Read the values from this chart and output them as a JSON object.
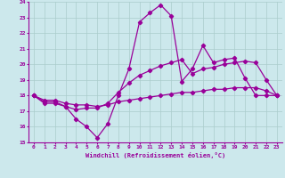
{
  "xlabel": "Windchill (Refroidissement éolien,°C)",
  "bg_color": "#cce8ec",
  "line_color": "#990099",
  "grid_color": "#aacccc",
  "xlim": [
    -0.5,
    23.5
  ],
  "ylim": [
    15,
    24
  ],
  "yticks": [
    15,
    16,
    17,
    18,
    19,
    20,
    21,
    22,
    23,
    24
  ],
  "xticks": [
    0,
    1,
    2,
    3,
    4,
    5,
    6,
    7,
    8,
    9,
    10,
    11,
    12,
    13,
    14,
    15,
    16,
    17,
    18,
    19,
    20,
    21,
    22,
    23
  ],
  "series1_y": [
    18.0,
    17.5,
    17.5,
    17.3,
    16.5,
    16.0,
    15.3,
    16.2,
    18.0,
    19.7,
    22.7,
    23.3,
    23.8,
    23.1,
    18.9,
    19.7,
    21.2,
    20.1,
    20.3,
    20.4,
    19.1,
    18.0,
    18.0,
    18.0
  ],
  "series2_y": [
    18.0,
    17.6,
    17.6,
    17.3,
    17.1,
    17.2,
    17.2,
    17.5,
    18.2,
    18.8,
    19.3,
    19.6,
    19.9,
    20.1,
    20.3,
    19.4,
    19.7,
    19.8,
    20.0,
    20.1,
    20.2,
    20.1,
    19.0,
    18.0
  ],
  "series3_y": [
    18.0,
    17.7,
    17.7,
    17.5,
    17.4,
    17.4,
    17.3,
    17.4,
    17.6,
    17.7,
    17.8,
    17.9,
    18.0,
    18.1,
    18.2,
    18.2,
    18.3,
    18.4,
    18.4,
    18.5,
    18.5,
    18.5,
    18.3,
    18.0
  ]
}
